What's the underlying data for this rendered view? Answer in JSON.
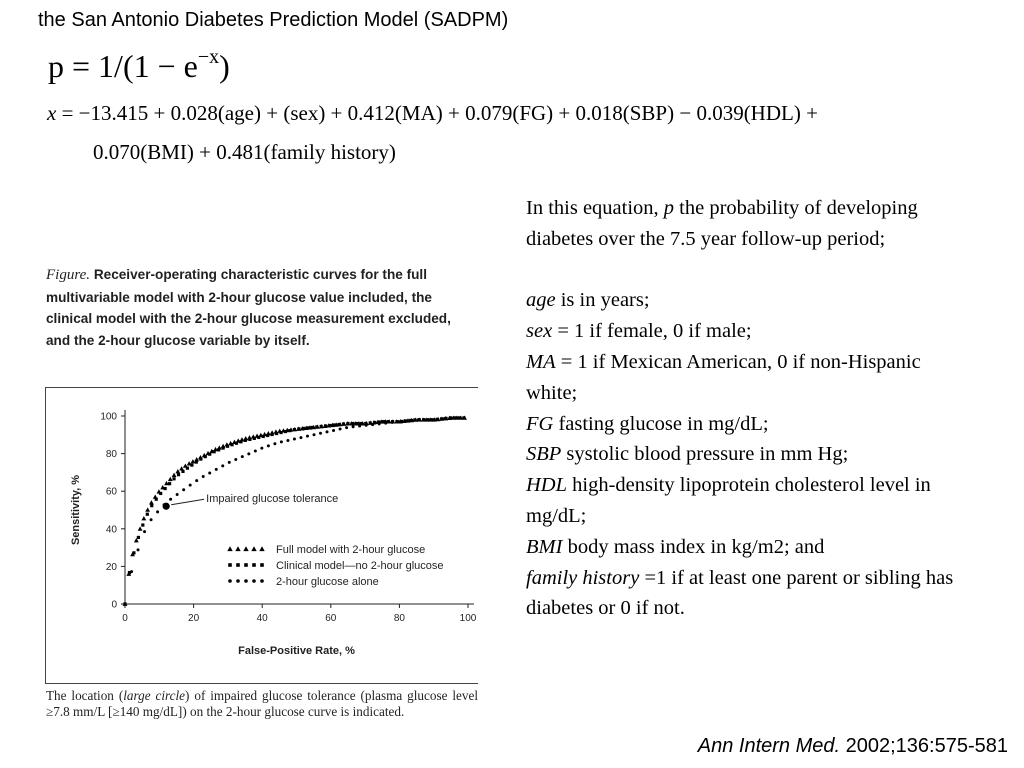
{
  "slide": {
    "title": "the San Antonio Diabetes Prediction Model (SADPM)",
    "citation_journal": "Ann Intern Med.",
    "citation_ref": " 2002;136:575-581"
  },
  "equation": {
    "main_base": "p = 1/(1 − e",
    "main_exp": "−x",
    "main_close": ")",
    "line1_var": "x",
    "line1_rest": " = −13.415 + 0.028(age) + (sex) + 0.412(MA) + 0.079(FG) + 0.018(SBP) − 0.039(HDL) +",
    "line2": "0.070(BMI) + 0.481(family  history)"
  },
  "figure": {
    "label": "Figure.",
    "caption": "Receiver-operating characteristic curves for the full multivariable model with 2-hour glucose value included, the clinical model with the 2-hour glucose measurement excluded, and the 2-hour glucose variable by itself.",
    "note_a": "The location (",
    "note_italic": "large circle",
    "note_b": ") of impaired glucose tolerance (plasma glucose level ≥7.8 mm/L [≥140 mg/dL]) on the 2-hour glucose curve is indicated."
  },
  "definitions": {
    "p_intro": "In this equation, ",
    "p_var": "p",
    "p_text": "  the probability of developing diabetes over the 7.5 year follow-up period;",
    "age_var": "age",
    "age_text": " is in years;",
    "sex_var": "sex",
    "sex_text": " = 1 if female, 0 if male;",
    "ma_var": "MA",
    "ma_text": " = 1 if Mexican American, 0 if non-Hispanic white;",
    "fg_var": "FG",
    "fg_text": "  fasting glucose in mg/dL;",
    "sbp_var": "SBP",
    "sbp_text": "  systolic blood pressure in mm Hg;",
    "hdl_var": "HDL",
    "hdl_text": "  high-density lipoprotein cholesterol level in mg/dL;",
    "bmi_var": "BMI",
    "bmi_text": "  body mass index in kg/m2; and",
    "fh_var": "family history",
    "fh_text": "  =1 if at least one parent or sibling has diabetes or 0 if not."
  },
  "chart_data": {
    "type": "line",
    "xlabel": "False-Positive Rate, %",
    "ylabel": "Sensitivity, %",
    "xlim": [
      0,
      100
    ],
    "ylim": [
      0,
      100
    ],
    "xticks": [
      0,
      20,
      40,
      60,
      80,
      100
    ],
    "yticks": [
      0,
      20,
      40,
      60,
      80,
      100
    ],
    "grid": false,
    "legend_position": "bottom-right",
    "series": [
      {
        "name": "Full model with 2-hour glucose",
        "marker": "triangle",
        "x": [
          0,
          1,
          2,
          3,
          4,
          5,
          6,
          8,
          10,
          12,
          15,
          18,
          22,
          26,
          30,
          35,
          40,
          45,
          50,
          55,
          60,
          65,
          70,
          75,
          80,
          85,
          90,
          95,
          100
        ],
        "y": [
          0,
          15,
          25,
          32,
          38,
          43,
          48,
          55,
          60,
          64,
          70,
          74,
          78,
          82,
          85,
          88,
          90,
          92,
          93,
          94,
          95,
          96,
          96,
          97,
          97,
          98,
          98,
          99,
          99
        ]
      },
      {
        "name": "Clinical model—no 2-hour glucose",
        "marker": "square",
        "x": [
          0,
          1,
          2,
          3,
          4,
          5,
          6,
          8,
          10,
          12,
          15,
          18,
          22,
          26,
          30,
          35,
          40,
          45,
          50,
          55,
          60,
          65,
          70,
          75,
          80,
          85,
          90,
          95,
          100
        ],
        "y": [
          0,
          14,
          23,
          30,
          36,
          41,
          46,
          53,
          58,
          62,
          68,
          72,
          77,
          81,
          84,
          87,
          89,
          91,
          93,
          94,
          95,
          96,
          96,
          97,
          97,
          98,
          98,
          99,
          99
        ]
      },
      {
        "name": "2-hour glucose alone",
        "marker": "circle",
        "x": [
          0,
          1,
          2,
          3,
          4,
          5,
          6,
          8,
          10,
          12,
          15,
          18,
          22,
          26,
          30,
          35,
          40,
          45,
          50,
          55,
          60,
          65,
          70,
          75,
          80,
          85,
          90,
          95,
          100
        ],
        "y": [
          0,
          10,
          18,
          24,
          30,
          35,
          40,
          46,
          50,
          54,
          58,
          62,
          67,
          71,
          75,
          79,
          83,
          86,
          88,
          90,
          92,
          94,
          95,
          96,
          97,
          98,
          98,
          99,
          99
        ]
      }
    ],
    "annotation": {
      "text": "Impaired glucose tolerance",
      "x": 12,
      "y": 52
    }
  }
}
